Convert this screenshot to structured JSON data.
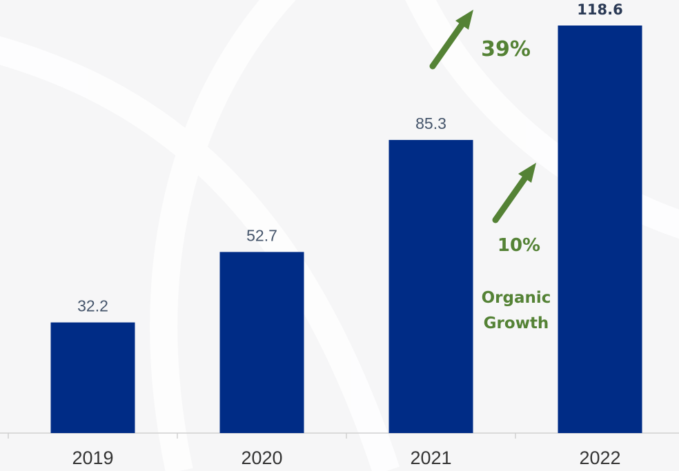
{
  "chart_data": {
    "type": "bar",
    "categories": [
      "2019",
      "2020",
      "2021",
      "2022"
    ],
    "values": [
      32.2,
      52.7,
      85.3,
      118.6
    ],
    "color": "#002c86",
    "annotations": [
      "39%",
      "10%",
      "Organic Growth"
    ]
  }
}
